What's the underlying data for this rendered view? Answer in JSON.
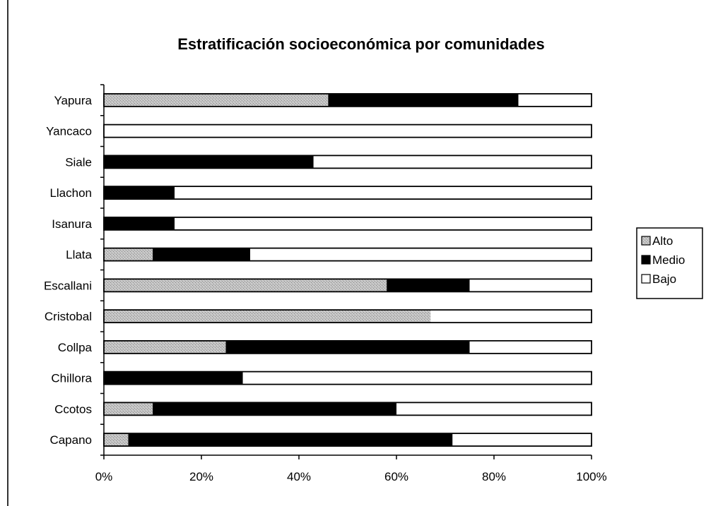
{
  "chart_data": {
    "type": "bar",
    "orientation": "horizontal",
    "stacked": "percent",
    "title": "Estratificación socioeconómica por comunidades",
    "xlabel": "",
    "ylabel": "",
    "xlim": [
      0,
      100
    ],
    "x_ticks": [
      "0%",
      "20%",
      "40%",
      "60%",
      "80%",
      "100%"
    ],
    "categories": [
      "Capano",
      "Ccotos",
      "Chillora",
      "Collpa",
      "Cristobal",
      "Escallani",
      "Llata",
      "Isanura",
      "Llachon",
      "Siale",
      "Yancaco",
      "Yapura"
    ],
    "series": [
      {
        "name": "Alto",
        "color": "#b8b8b8",
        "values": [
          5,
          10,
          0,
          25,
          67,
          58,
          10,
          0,
          0,
          0,
          0,
          46
        ]
      },
      {
        "name": "Medio",
        "color": "#000000",
        "values": [
          66.5,
          50,
          28.5,
          50,
          0,
          17,
          20,
          14.5,
          14.5,
          43,
          0,
          39
        ]
      },
      {
        "name": "Bajo",
        "color": "#ffffff",
        "values": [
          28.5,
          40,
          71.5,
          25,
          33,
          25,
          70,
          85.5,
          85.5,
          57,
          100,
          15
        ]
      }
    ],
    "legend_position": "right",
    "grid": false
  }
}
